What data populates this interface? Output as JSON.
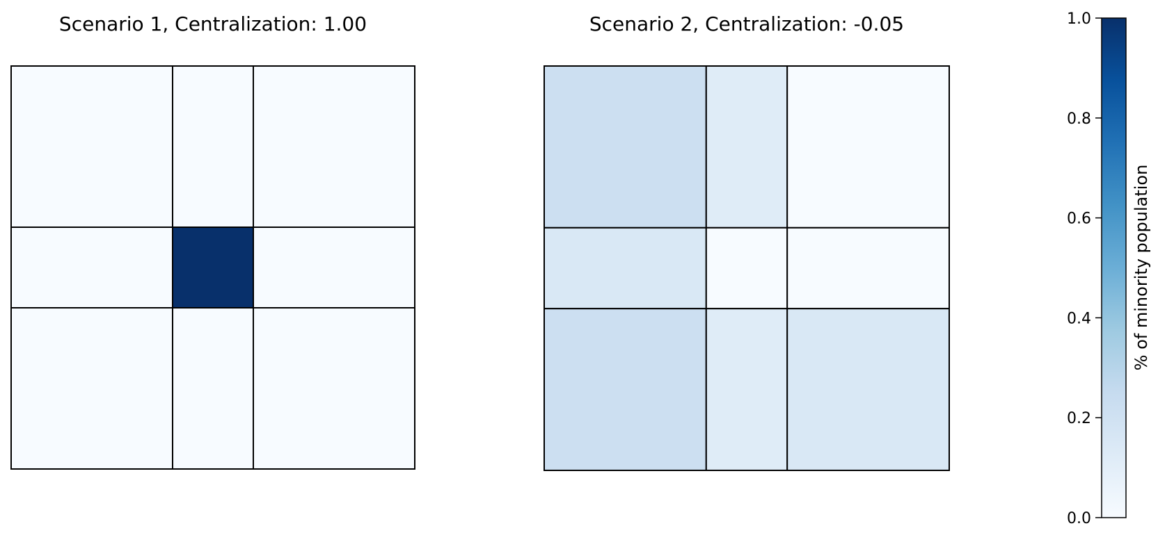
{
  "chart_data": [
    {
      "type": "heatmap",
      "title": "Scenario 1, Centralization: 1.00",
      "col_widths": [
        0.4,
        0.2,
        0.4
      ],
      "row_heights": [
        0.4,
        0.2,
        0.4
      ],
      "values": [
        [
          0.0,
          0.0,
          0.0
        ],
        [
          0.0,
          1.0,
          0.0
        ],
        [
          0.0,
          0.0,
          0.0
        ]
      ]
    },
    {
      "type": "heatmap",
      "title": "Scenario 2, Centralization: -0.05",
      "col_widths": [
        0.4,
        0.2,
        0.4
      ],
      "row_heights": [
        0.4,
        0.2,
        0.4
      ],
      "values": [
        [
          0.22,
          0.12,
          0.0
        ],
        [
          0.15,
          0.0,
          0.0
        ],
        [
          0.22,
          0.12,
          0.15
        ]
      ]
    }
  ],
  "colorbar": {
    "label": "% of minority population",
    "range": [
      0.0,
      1.0
    ],
    "ticks": [
      {
        "value": 0.0,
        "label": "0.0"
      },
      {
        "value": 0.2,
        "label": "0.2"
      },
      {
        "value": 0.4,
        "label": "0.4"
      },
      {
        "value": 0.6,
        "label": "0.6"
      },
      {
        "value": 0.8,
        "label": "0.8"
      },
      {
        "value": 1.0,
        "label": "1.0"
      }
    ],
    "colormap": "Blues",
    "colormap_stops": [
      "#f7fbff",
      "#deebf7",
      "#c6dbef",
      "#9ecae1",
      "#6baed6",
      "#4292c6",
      "#2171b5",
      "#08519c",
      "#08306b"
    ]
  }
}
